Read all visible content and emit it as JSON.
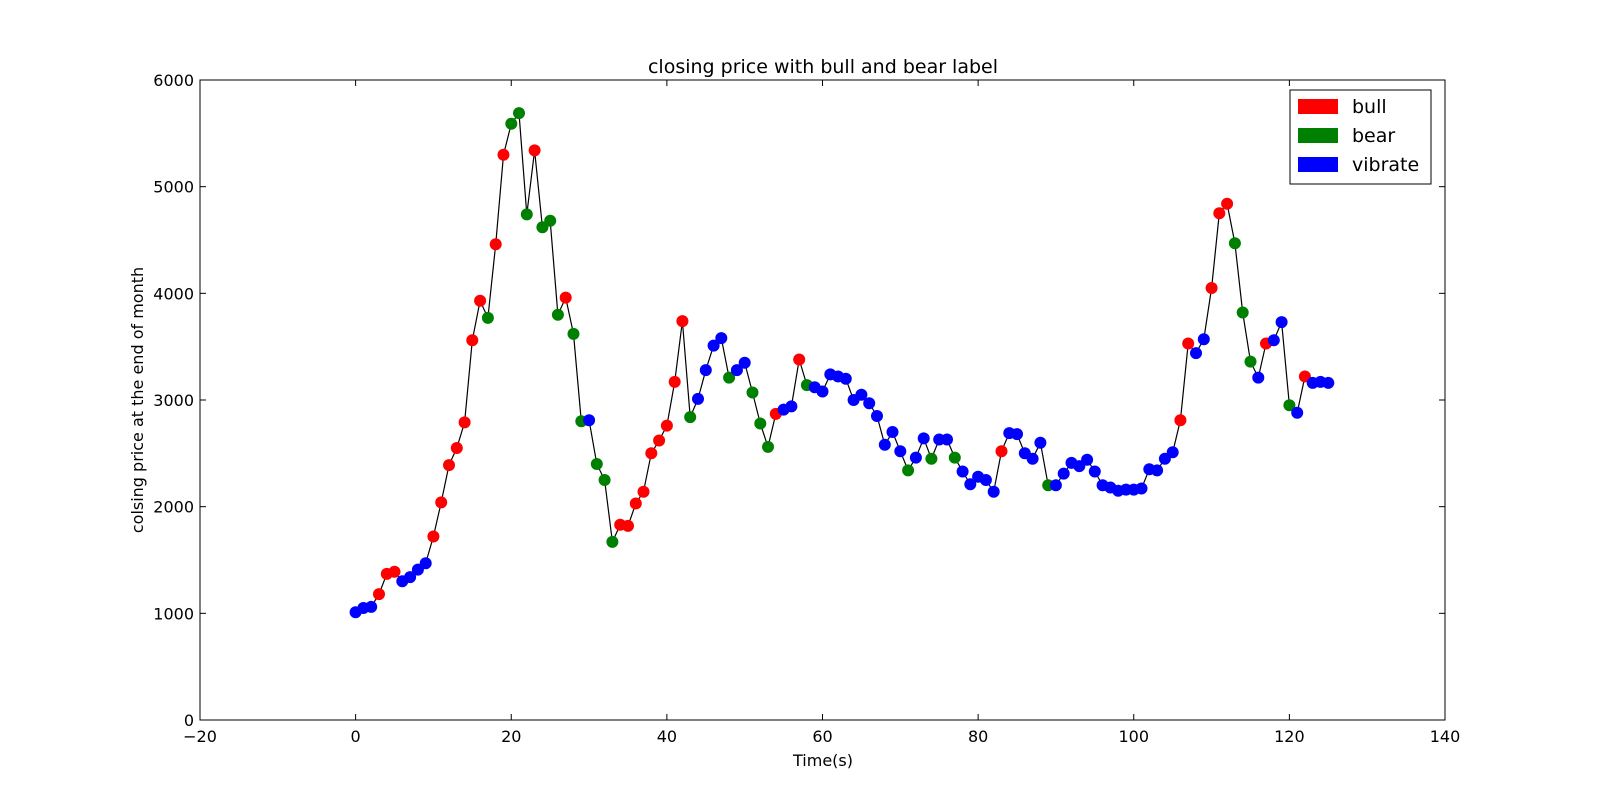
{
  "chart_data": {
    "type": "scatter",
    "title": "closing price with bull and bear label",
    "xlabel": "Time(s)",
    "ylabel": "colsing price at the end of month",
    "xlim": [
      -20,
      140
    ],
    "ylim": [
      0,
      6000
    ],
    "xticks": [
      "−20",
      "0",
      "20",
      "40",
      "60",
      "80",
      "100",
      "120",
      "140"
    ],
    "yticks": [
      "0",
      "1000",
      "2000",
      "3000",
      "4000",
      "5000",
      "6000"
    ],
    "grid": false,
    "legend_position": "top-right",
    "legend": [
      {
        "label": "bull",
        "color": "#ff0000"
      },
      {
        "label": "bear",
        "color": "#008000"
      },
      {
        "label": "vibrate",
        "color": "#0000ff"
      }
    ],
    "line_color": "#000000",
    "x": [
      0,
      1,
      2,
      3,
      4,
      5,
      6,
      7,
      8,
      9,
      10,
      11,
      12,
      13,
      14,
      15,
      16,
      17,
      18,
      19,
      20,
      21,
      22,
      23,
      24,
      25,
      26,
      27,
      28,
      29,
      30,
      31,
      32,
      33,
      34,
      35,
      36,
      37,
      38,
      39,
      40,
      41,
      42,
      43,
      44,
      45,
      46,
      47,
      48,
      49,
      50,
      51,
      52,
      53,
      54,
      55,
      56,
      57,
      58,
      59,
      60,
      61,
      62,
      63,
      64,
      65,
      66,
      67,
      68,
      69,
      70,
      71,
      72,
      73,
      74,
      75,
      76,
      77,
      78,
      79,
      80,
      81,
      82,
      83,
      84,
      85,
      86,
      87,
      88,
      89,
      90,
      91,
      92,
      93,
      94,
      95,
      96,
      97,
      98,
      99,
      100,
      101,
      102,
      103,
      104,
      105,
      106,
      107,
      108,
      109,
      110,
      111,
      112,
      113,
      114,
      115,
      116,
      117,
      118,
      119,
      120,
      121,
      122,
      123,
      124,
      125
    ],
    "y": [
      1010,
      1050,
      1060,
      1180,
      1370,
      1390,
      1300,
      1340,
      1410,
      1470,
      1720,
      2040,
      2390,
      2550,
      2790,
      3560,
      3930,
      3770,
      4460,
      5300,
      5590,
      5690,
      4740,
      5340,
      4620,
      4680,
      3800,
      3960,
      3620,
      2800,
      2810,
      2400,
      2250,
      1670,
      1830,
      1820,
      2030,
      2140,
      2500,
      2620,
      2760,
      3170,
      3740,
      2840,
      3010,
      3280,
      3510,
      3580,
      3210,
      3280,
      3350,
      3070,
      2780,
      2560,
      2870,
      2910,
      2940,
      3380,
      3140,
      3120,
      3080,
      3240,
      3220,
      3200,
      3000,
      3050,
      2970,
      2850,
      2580,
      2700,
      2520,
      2340,
      2460,
      2640,
      2450,
      2630,
      2630,
      2460,
      2330,
      2210,
      2280,
      2250,
      2140,
      2520,
      2690,
      2680,
      2500,
      2450,
      2600,
      2200,
      2200,
      2310,
      2410,
      2380,
      2440,
      2330,
      2200,
      2180,
      2150,
      2160,
      2160,
      2170,
      2350,
      2340,
      2450,
      2510,
      2810,
      3530,
      3440,
      3570,
      4050,
      4750,
      4840,
      4470,
      3820,
      3360,
      3210,
      3530,
      3560,
      3730,
      2950,
      2880,
      3220,
      3160,
      3170,
      3160
    ],
    "labels": [
      "vibrate",
      "vibrate",
      "vibrate",
      "bull",
      "bull",
      "bull",
      "vibrate",
      "vibrate",
      "vibrate",
      "vibrate",
      "bull",
      "bull",
      "bull",
      "bull",
      "bull",
      "bull",
      "bull",
      "bear",
      "bull",
      "bull",
      "bear",
      "bear",
      "bear",
      "bull",
      "bear",
      "bear",
      "bear",
      "bull",
      "bear",
      "bear",
      "vibrate",
      "bear",
      "bear",
      "bear",
      "bull",
      "bull",
      "bull",
      "bull",
      "bull",
      "bull",
      "bull",
      "bull",
      "bull",
      "bear",
      "vibrate",
      "vibrate",
      "vibrate",
      "vibrate",
      "bear",
      "vibrate",
      "vibrate",
      "bear",
      "bear",
      "bear",
      "bull",
      "vibrate",
      "vibrate",
      "bull",
      "bear",
      "vibrate",
      "vibrate",
      "vibrate",
      "vibrate",
      "vibrate",
      "vibrate",
      "vibrate",
      "vibrate",
      "vibrate",
      "vibrate",
      "vibrate",
      "vibrate",
      "bear",
      "vibrate",
      "vibrate",
      "bear",
      "vibrate",
      "vibrate",
      "bear",
      "vibrate",
      "vibrate",
      "vibrate",
      "vibrate",
      "vibrate",
      "bull",
      "vibrate",
      "vibrate",
      "vibrate",
      "vibrate",
      "vibrate",
      "bear",
      "vibrate",
      "vibrate",
      "vibrate",
      "vibrate",
      "vibrate",
      "vibrate",
      "vibrate",
      "vibrate",
      "vibrate",
      "vibrate",
      "vibrate",
      "vibrate",
      "vibrate",
      "vibrate",
      "vibrate",
      "vibrate",
      "bull",
      "bull",
      "vibrate",
      "vibrate",
      "bull",
      "bull",
      "bull",
      "bear",
      "bear",
      "bear",
      "vibrate",
      "bull",
      "vibrate",
      "vibrate",
      "bear",
      "vibrate",
      "bull",
      "vibrate",
      "vibrate",
      "vibrate"
    ]
  }
}
